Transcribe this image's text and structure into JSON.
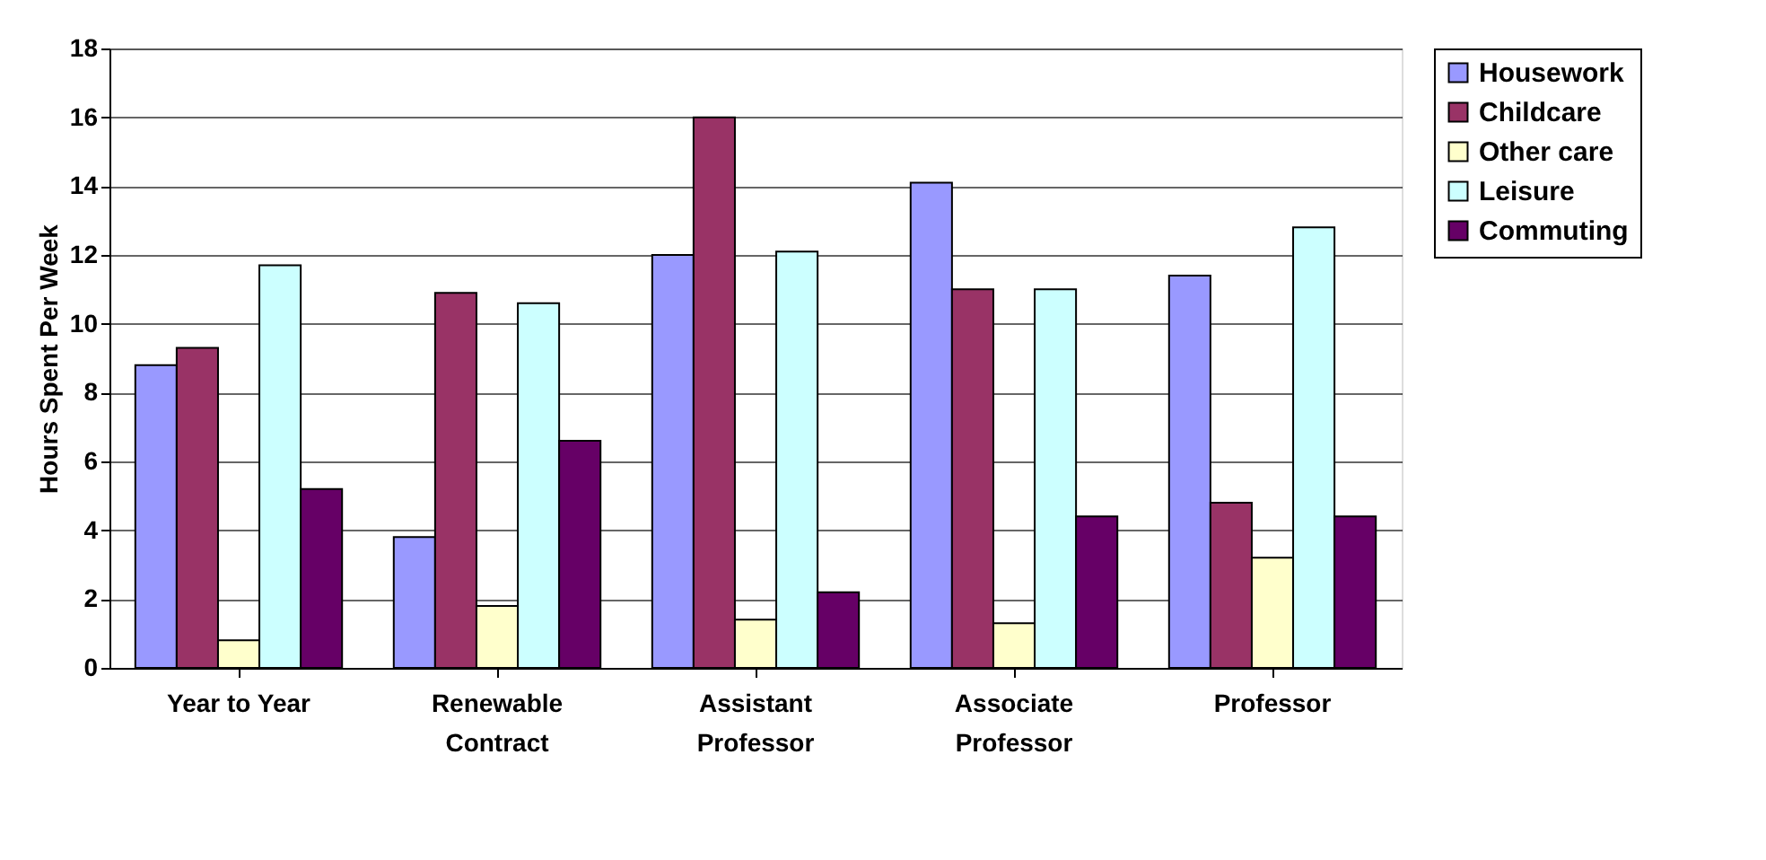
{
  "chart_data": {
    "type": "bar",
    "ylabel": "Hours Spent Per Week",
    "categories": [
      "Year to Year",
      "Renewable\nContract",
      "Assistant\nProfessor",
      "Associate\nProfessor",
      "Professor"
    ],
    "series": [
      {
        "name": "Housework",
        "color": "#9999ff",
        "values": [
          8.8,
          3.8,
          12.0,
          14.1,
          11.4
        ]
      },
      {
        "name": "Childcare",
        "color": "#993366",
        "values": [
          9.3,
          10.9,
          16.0,
          11.0,
          4.8
        ]
      },
      {
        "name": "Other care",
        "color": "#ffffcc",
        "values": [
          0.8,
          1.8,
          1.4,
          1.3,
          3.2
        ]
      },
      {
        "name": "Leisure",
        "color": "#ccffff",
        "values": [
          11.7,
          10.6,
          12.1,
          11.0,
          12.8
        ]
      },
      {
        "name": "Commuting",
        "color": "#660066",
        "values": [
          5.2,
          6.6,
          2.2,
          4.4,
          4.4
        ]
      }
    ],
    "ylim": [
      0,
      18
    ],
    "yticks": [
      0,
      2,
      4,
      6,
      8,
      10,
      12,
      14,
      16,
      18
    ],
    "grid": "y",
    "legend": "right"
  }
}
